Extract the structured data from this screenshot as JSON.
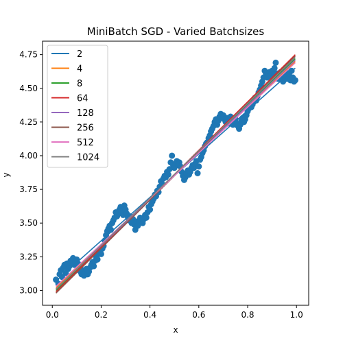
{
  "chart_data": {
    "type": "scatter",
    "title": "MiniBatch SGD - Varied Batchsizes",
    "xlabel": "x",
    "ylabel": "y",
    "xlim": [
      -0.04,
      1.05
    ],
    "ylim": [
      2.89,
      4.85
    ],
    "xticks": [
      0.0,
      0.2,
      0.4,
      0.6,
      0.8,
      1.0
    ],
    "yticks": [
      3.0,
      3.25,
      3.5,
      3.75,
      4.0,
      4.25,
      4.5,
      4.75
    ],
    "grid": false,
    "legend_position": "top-left",
    "scatter": {
      "color": "#1f77b4",
      "points": [
        [
          0.015,
          3.08
        ],
        [
          0.025,
          3.05
        ],
        [
          0.03,
          3.12
        ],
        [
          0.035,
          3.15
        ],
        [
          0.04,
          3.1
        ],
        [
          0.045,
          3.17
        ],
        [
          0.05,
          3.19
        ],
        [
          0.055,
          3.13
        ],
        [
          0.06,
          3.2
        ],
        [
          0.065,
          3.16
        ],
        [
          0.07,
          3.18
        ],
        [
          0.075,
          3.22
        ],
        [
          0.08,
          3.2
        ],
        [
          0.085,
          3.24
        ],
        [
          0.09,
          3.19
        ],
        [
          0.095,
          3.21
        ],
        [
          0.1,
          3.23
        ],
        [
          0.105,
          3.2
        ],
        [
          0.11,
          3.17
        ],
        [
          0.115,
          3.14
        ],
        [
          0.12,
          3.12
        ],
        [
          0.125,
          3.15
        ],
        [
          0.13,
          3.11
        ],
        [
          0.135,
          3.13
        ],
        [
          0.14,
          3.16
        ],
        [
          0.145,
          3.12
        ],
        [
          0.15,
          3.14
        ],
        [
          0.155,
          3.17
        ],
        [
          0.16,
          3.19
        ],
        [
          0.165,
          3.21
        ],
        [
          0.17,
          3.18
        ],
        [
          0.175,
          3.22
        ],
        [
          0.18,
          3.25
        ],
        [
          0.185,
          3.23
        ],
        [
          0.19,
          3.27
        ],
        [
          0.195,
          3.29
        ],
        [
          0.2,
          3.27
        ],
        [
          0.205,
          3.31
        ],
        [
          0.21,
          3.33
        ],
        [
          0.215,
          3.37
        ],
        [
          0.22,
          3.41
        ],
        [
          0.225,
          3.44
        ],
        [
          0.23,
          3.46
        ],
        [
          0.235,
          3.48
        ],
        [
          0.24,
          3.45
        ],
        [
          0.245,
          3.5
        ],
        [
          0.25,
          3.52
        ],
        [
          0.255,
          3.54
        ],
        [
          0.26,
          3.58
        ],
        [
          0.265,
          3.55
        ],
        [
          0.27,
          3.57
        ],
        [
          0.275,
          3.6
        ],
        [
          0.28,
          3.62
        ],
        [
          0.285,
          3.59
        ],
        [
          0.29,
          3.56
        ],
        [
          0.295,
          3.63
        ],
        [
          0.3,
          3.6
        ],
        [
          0.305,
          3.57
        ],
        [
          0.31,
          3.54
        ],
        [
          0.315,
          3.52
        ],
        [
          0.32,
          3.55
        ],
        [
          0.325,
          3.5
        ],
        [
          0.33,
          3.53
        ],
        [
          0.335,
          3.49
        ],
        [
          0.34,
          3.45
        ],
        [
          0.345,
          3.51
        ],
        [
          0.35,
          3.48
        ],
        [
          0.355,
          3.52
        ],
        [
          0.36,
          3.54
        ],
        [
          0.365,
          3.51
        ],
        [
          0.37,
          3.5
        ],
        [
          0.375,
          3.53
        ],
        [
          0.38,
          3.56
        ],
        [
          0.385,
          3.54
        ],
        [
          0.39,
          3.58
        ],
        [
          0.395,
          3.62
        ],
        [
          0.4,
          3.6
        ],
        [
          0.405,
          3.64
        ],
        [
          0.41,
          3.66
        ],
        [
          0.415,
          3.68
        ],
        [
          0.42,
          3.71
        ],
        [
          0.425,
          3.7
        ],
        [
          0.43,
          3.74
        ],
        [
          0.435,
          3.73
        ],
        [
          0.44,
          3.77
        ],
        [
          0.445,
          3.81
        ],
        [
          0.45,
          3.79
        ],
        [
          0.455,
          3.83
        ],
        [
          0.46,
          3.85
        ],
        [
          0.465,
          3.84
        ],
        [
          0.47,
          3.88
        ],
        [
          0.475,
          3.86
        ],
        [
          0.48,
          3.9
        ],
        [
          0.485,
          3.95
        ],
        [
          0.49,
          4.0
        ],
        [
          0.495,
          3.93
        ],
        [
          0.5,
          3.91
        ],
        [
          0.505,
          3.94
        ],
        [
          0.51,
          3.96
        ],
        [
          0.515,
          3.93
        ],
        [
          0.52,
          3.95
        ],
        [
          0.525,
          3.92
        ],
        [
          0.53,
          3.88
        ],
        [
          0.535,
          3.85
        ],
        [
          0.54,
          3.82
        ],
        [
          0.545,
          3.84
        ],
        [
          0.55,
          3.87
        ],
        [
          0.555,
          3.89
        ],
        [
          0.56,
          3.86
        ],
        [
          0.565,
          3.88
        ],
        [
          0.57,
          3.91
        ],
        [
          0.575,
          3.93
        ],
        [
          0.58,
          3.91
        ],
        [
          0.585,
          3.94
        ],
        [
          0.59,
          3.96
        ],
        [
          0.595,
          3.87
        ],
        [
          0.6,
          3.92
        ],
        [
          0.605,
          3.97
        ],
        [
          0.61,
          3.99
        ],
        [
          0.615,
          4.02
        ],
        [
          0.62,
          4.04
        ],
        [
          0.625,
          4.07
        ],
        [
          0.63,
          4.09
        ],
        [
          0.635,
          4.1
        ],
        [
          0.64,
          4.13
        ],
        [
          0.645,
          4.15
        ],
        [
          0.65,
          4.18
        ],
        [
          0.655,
          4.2
        ],
        [
          0.66,
          4.22
        ],
        [
          0.665,
          4.25
        ],
        [
          0.67,
          4.27
        ],
        [
          0.675,
          4.23
        ],
        [
          0.68,
          4.26
        ],
        [
          0.685,
          4.29
        ],
        [
          0.69,
          4.31
        ],
        [
          0.695,
          4.28
        ],
        [
          0.7,
          4.3
        ],
        [
          0.705,
          4.27
        ],
        [
          0.71,
          4.25
        ],
        [
          0.715,
          4.28
        ],
        [
          0.72,
          4.24
        ],
        [
          0.725,
          4.26
        ],
        [
          0.73,
          4.29
        ],
        [
          0.735,
          4.27
        ],
        [
          0.74,
          4.23
        ],
        [
          0.745,
          4.25
        ],
        [
          0.75,
          4.27
        ],
        [
          0.755,
          4.24
        ],
        [
          0.76,
          4.22
        ],
        [
          0.765,
          4.2
        ],
        [
          0.77,
          4.23
        ],
        [
          0.775,
          4.26
        ],
        [
          0.78,
          4.28
        ],
        [
          0.785,
          4.25
        ],
        [
          0.79,
          4.27
        ],
        [
          0.795,
          4.3
        ],
        [
          0.8,
          4.33
        ],
        [
          0.805,
          4.35
        ],
        [
          0.81,
          4.37
        ],
        [
          0.815,
          4.36
        ],
        [
          0.82,
          4.38
        ],
        [
          0.825,
          4.4
        ],
        [
          0.83,
          4.43
        ],
        [
          0.835,
          4.41
        ],
        [
          0.84,
          4.44
        ],
        [
          0.845,
          4.47
        ],
        [
          0.85,
          4.49
        ],
        [
          0.855,
          4.52
        ],
        [
          0.86,
          4.55
        ],
        [
          0.865,
          4.58
        ],
        [
          0.87,
          4.63
        ],
        [
          0.875,
          4.61
        ],
        [
          0.88,
          4.58
        ],
        [
          0.885,
          4.6
        ],
        [
          0.89,
          4.62
        ],
        [
          0.895,
          4.59
        ],
        [
          0.9,
          4.63
        ],
        [
          0.905,
          4.6
        ],
        [
          0.91,
          4.65
        ],
        [
          0.915,
          4.69
        ],
        [
          0.92,
          4.61
        ],
        [
          0.925,
          4.57
        ],
        [
          0.93,
          4.6
        ],
        [
          0.935,
          4.62
        ],
        [
          0.94,
          4.58
        ],
        [
          0.945,
          4.55
        ],
        [
          0.95,
          4.6
        ],
        [
          0.955,
          4.63
        ],
        [
          0.96,
          4.57
        ],
        [
          0.965,
          4.59
        ],
        [
          0.97,
          4.61
        ],
        [
          0.975,
          4.56
        ],
        [
          0.98,
          4.63
        ],
        [
          0.985,
          4.58
        ],
        [
          0.99,
          4.55
        ],
        [
          0.995,
          4.56
        ]
      ]
    },
    "series": [
      {
        "name": "2",
        "color": "#1f77b4",
        "x": [
          0.015,
          0.995
        ],
        "y": [
          3.07,
          4.65
        ]
      },
      {
        "name": "4",
        "color": "#ff7f0e",
        "x": [
          0.015,
          0.995
        ],
        "y": [
          3.02,
          4.7
        ]
      },
      {
        "name": "8",
        "color": "#2ca02c",
        "x": [
          0.015,
          0.995
        ],
        "y": [
          3.0,
          4.72
        ]
      },
      {
        "name": "64",
        "color": "#d62728",
        "x": [
          0.015,
          0.995
        ],
        "y": [
          2.99,
          4.75
        ]
      },
      {
        "name": "128",
        "color": "#9467bd",
        "x": [
          0.015,
          0.995
        ],
        "y": [
          3.01,
          4.71
        ]
      },
      {
        "name": "256",
        "color": "#8c564b",
        "x": [
          0.015,
          0.995
        ],
        "y": [
          2.98,
          4.74
        ]
      },
      {
        "name": "512",
        "color": "#e377c2",
        "x": [
          0.015,
          0.995
        ],
        "y": [
          3.03,
          4.69
        ]
      },
      {
        "name": "1024",
        "color": "#7f7f7f",
        "x": [
          0.015,
          0.995
        ],
        "y": [
          3.01,
          4.73
        ]
      }
    ]
  }
}
